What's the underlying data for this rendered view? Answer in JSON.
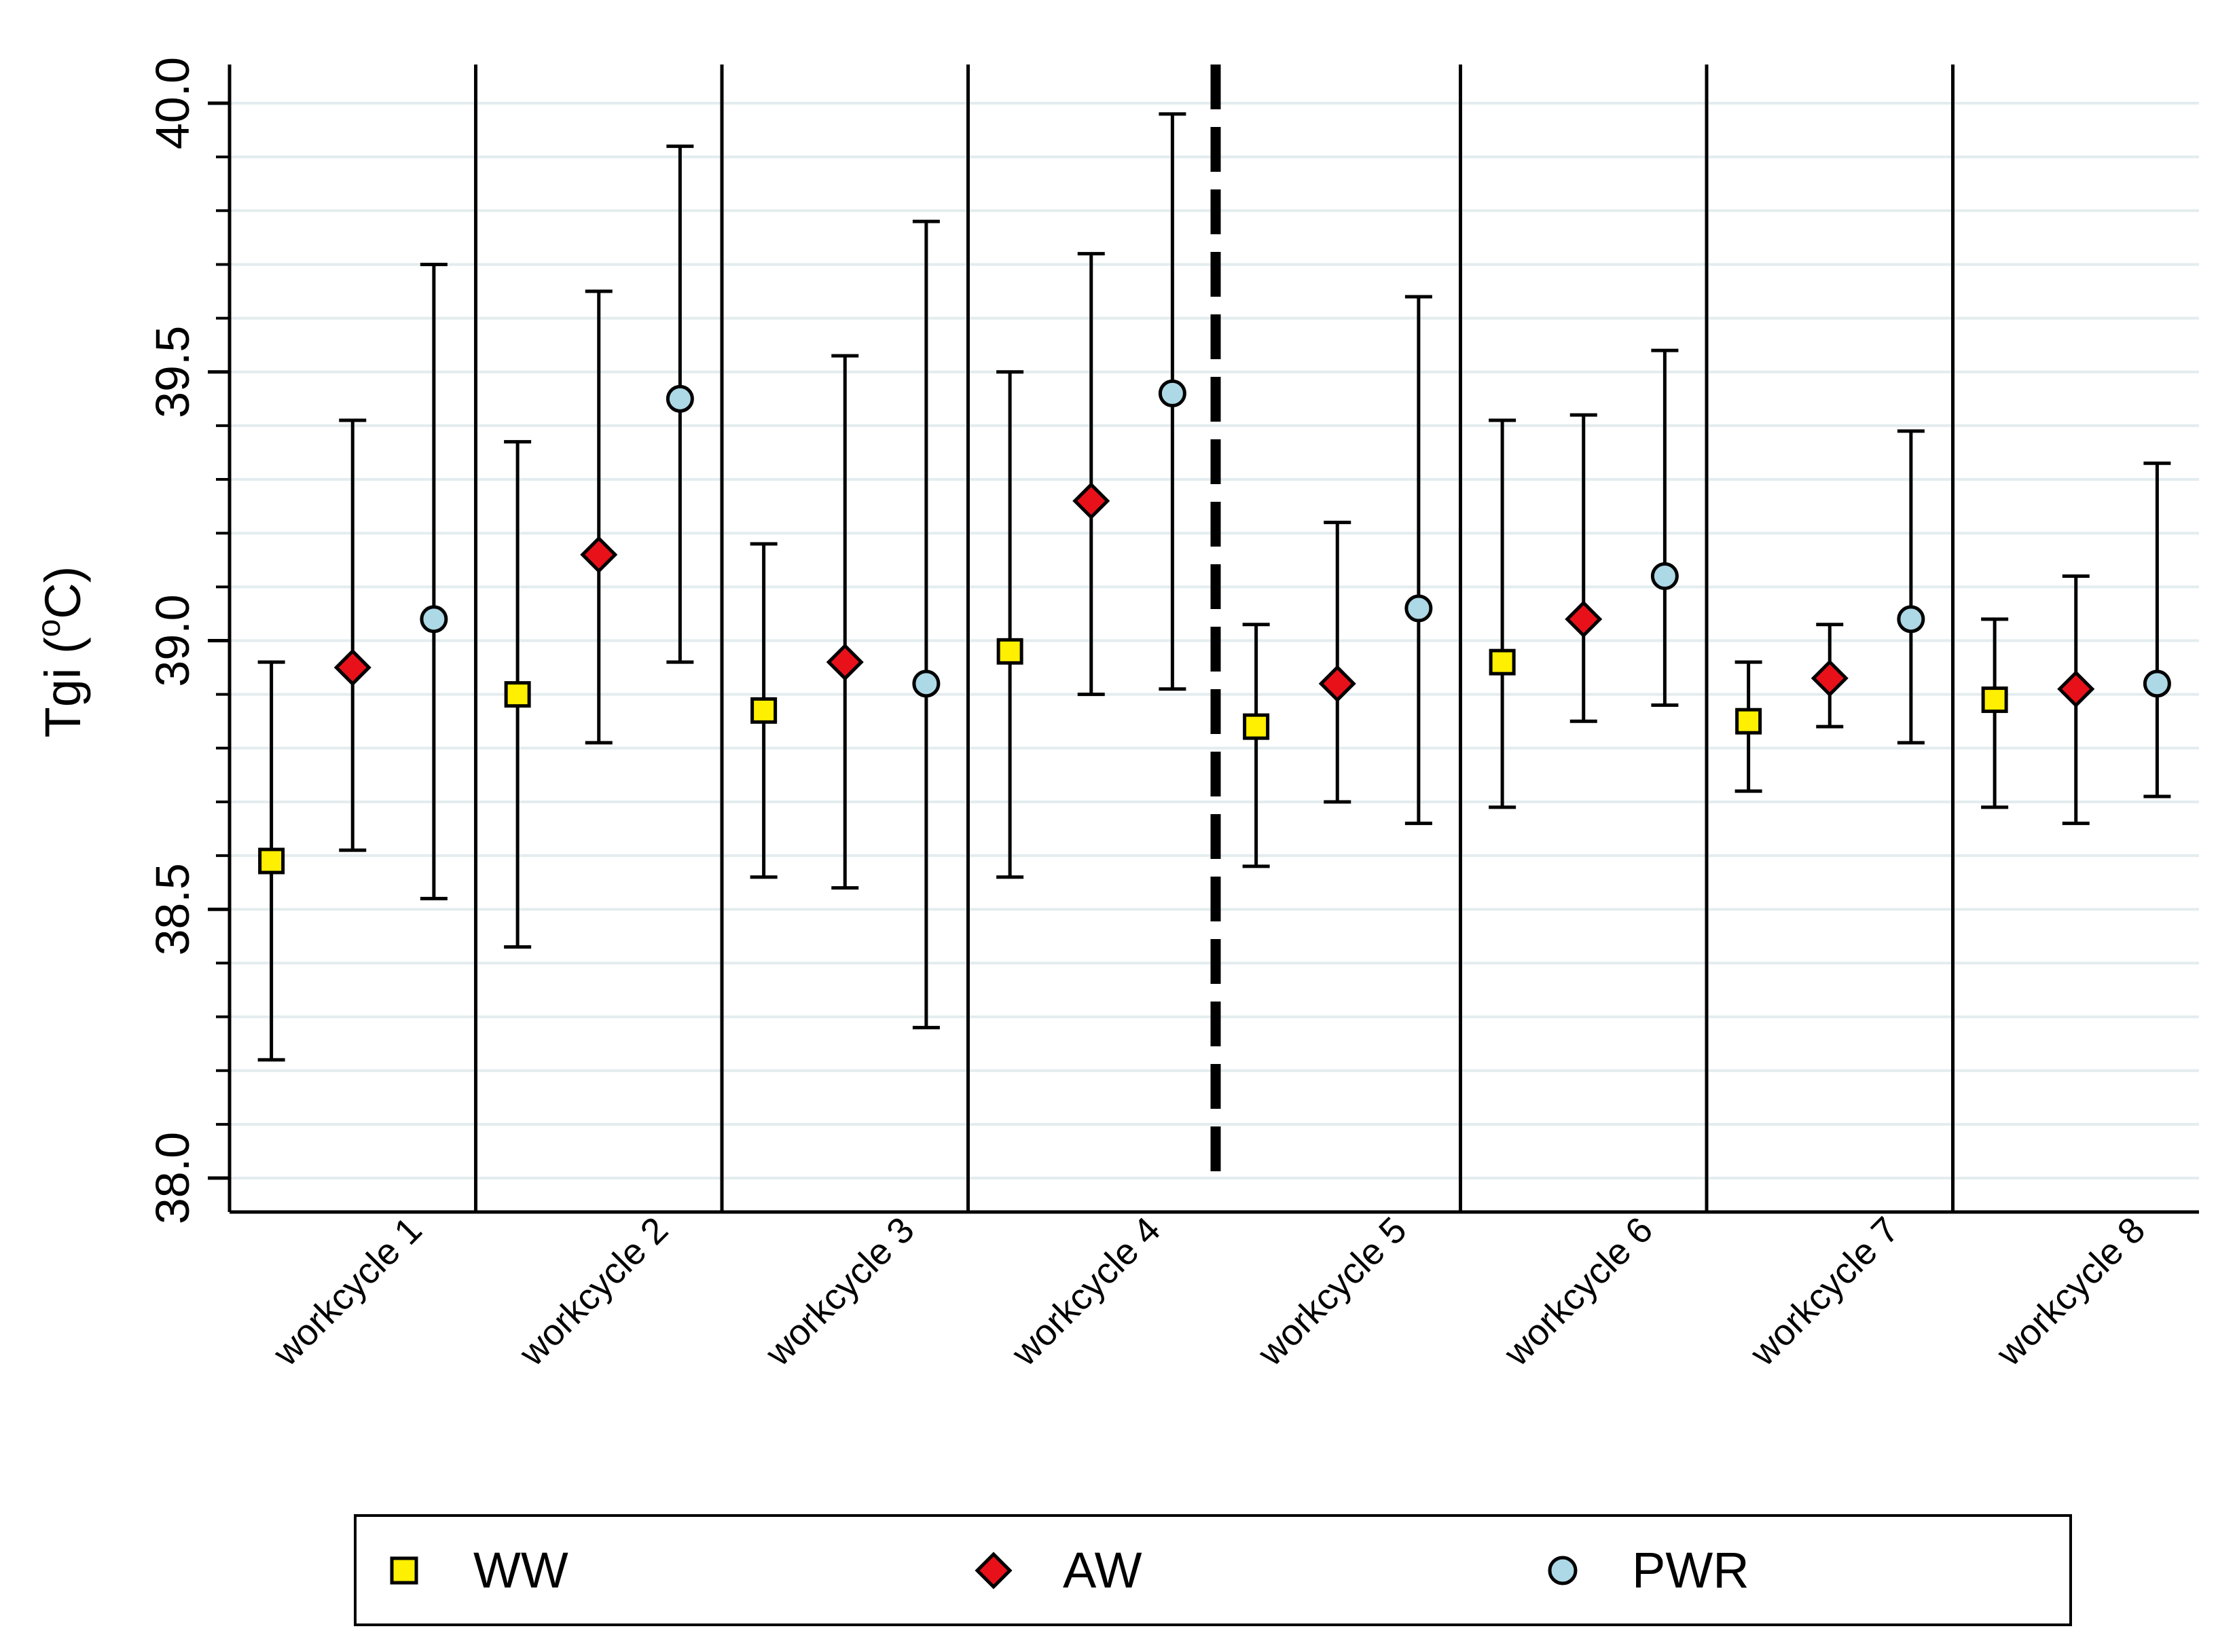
{
  "chart_data": {
    "type": "scatter",
    "subtype": "mean-with-error-bars",
    "title": "",
    "xlabel": "",
    "ylabel_main": "Tgi (",
    "ylabel_sup": "o",
    "ylabel_end": "C)",
    "ylim": [
      38.0,
      40.0
    ],
    "yticks": [
      "38.0",
      "38.5",
      "39.0",
      "39.5",
      "40.0"
    ],
    "ytick_values": [
      38.0,
      38.5,
      39.0,
      39.5,
      40.0
    ],
    "minor_gridlines_step": 0.1,
    "categories": [
      "workcycle 1",
      "workcycle 2",
      "workcycle 3",
      "workcycle 4",
      "workcycle 5",
      "workcycle 6",
      "workcycle 7",
      "workcycle 8"
    ],
    "dashed_separator_after_category": 4,
    "series": [
      {
        "name": "WW",
        "marker": "square",
        "color": "#FFEF00",
        "mean": [
          38.59,
          38.9,
          38.87,
          38.98,
          38.84,
          38.96,
          38.85,
          38.89
        ],
        "lower": [
          38.22,
          38.43,
          38.56,
          38.56,
          38.58,
          38.69,
          38.72,
          38.69
        ],
        "upper": [
          38.96,
          39.37,
          39.18,
          39.5,
          39.03,
          39.41,
          38.96,
          39.04
        ]
      },
      {
        "name": "AW",
        "marker": "diamond",
        "color": "#E8111A",
        "mean": [
          38.95,
          39.16,
          38.96,
          39.26,
          38.92,
          39.04,
          38.93,
          38.91
        ],
        "lower": [
          38.61,
          38.81,
          38.54,
          38.9,
          38.7,
          38.85,
          38.84,
          38.66
        ],
        "upper": [
          39.41,
          39.65,
          39.53,
          39.72,
          39.22,
          39.42,
          39.03,
          39.12
        ]
      },
      {
        "name": "PWR",
        "marker": "circle",
        "color": "#ADD8E6",
        "mean": [
          39.04,
          39.45,
          38.92,
          39.46,
          39.06,
          39.12,
          39.04,
          38.92
        ],
        "lower": [
          38.52,
          38.96,
          38.28,
          38.91,
          38.66,
          38.88,
          38.81,
          38.71
        ],
        "upper": [
          39.7,
          39.92,
          39.78,
          39.98,
          39.64,
          39.54,
          39.39,
          39.33
        ]
      }
    ],
    "legend": {
      "position": "bottom"
    }
  }
}
